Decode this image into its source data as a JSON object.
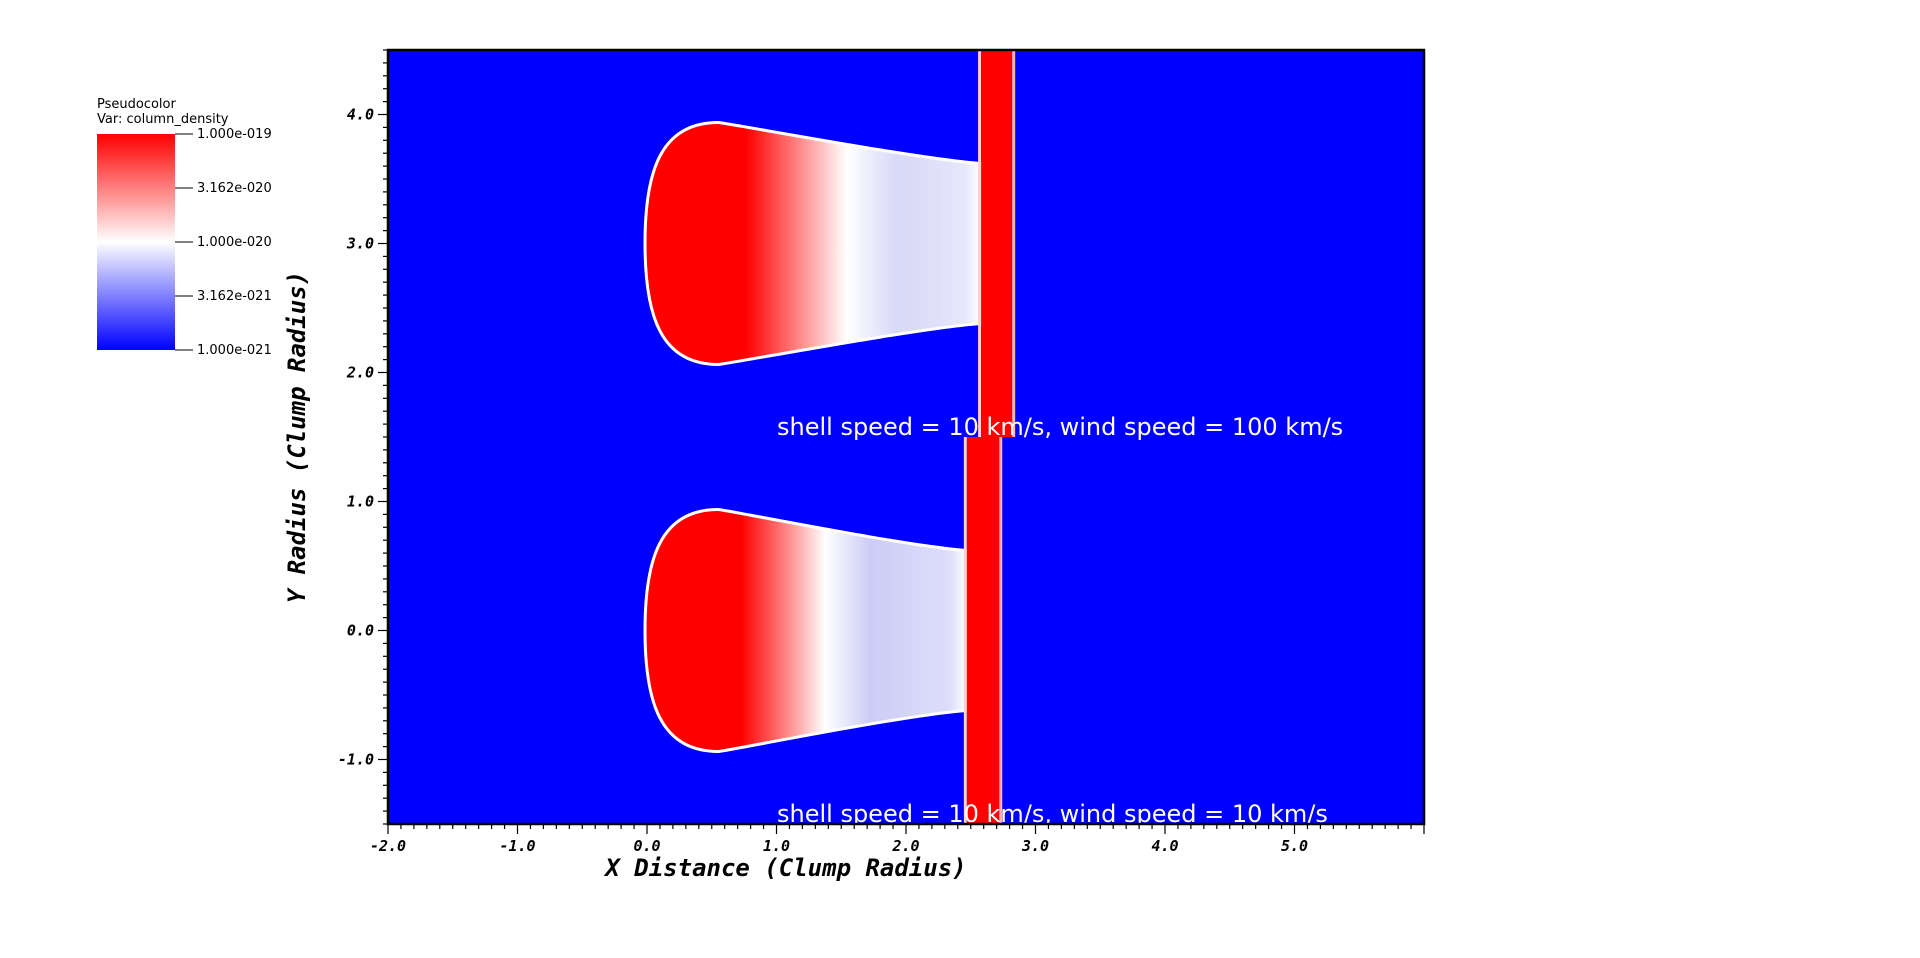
{
  "legend": {
    "title_line1": "Pseudocolor",
    "title_line2": "Var: column_density",
    "ticks": [
      "1.000e-019",
      "3.162e-020",
      "1.000e-020",
      "3.162e-021",
      "1.000e-021"
    ],
    "colors": {
      "high": "#ff0000",
      "mid": "#ffffff",
      "low": "#0000ff"
    }
  },
  "chart_data": {
    "type": "heatmap",
    "variable": "column_density",
    "scale": "log",
    "color_range": [
      1e-21,
      1e-19
    ],
    "xlabel": "X Distance (Clump Radius)",
    "ylabel": "Y Radius (Clump Radius)",
    "xlim": [
      -2.0,
      6.0
    ],
    "ylim": [
      -1.5,
      4.5
    ],
    "xticks": [
      -2.0,
      -1.0,
      0.0,
      1.0,
      2.0,
      3.0,
      4.0,
      5.0
    ],
    "xtick_labels": [
      "-2.0",
      "-1.0",
      "0.0",
      "1.0",
      "2.0",
      "3.0",
      "4.0",
      "5.0"
    ],
    "yticks": [
      -1.0,
      0.0,
      1.0,
      2.0,
      3.0,
      4.0
    ],
    "ytick_labels": [
      "-1.0",
      "0.0",
      "1.0",
      "2.0",
      "3.0",
      "4.0"
    ],
    "background_color": "#0000ff",
    "panels": [
      {
        "annotation": "shell speed = 10 km/s, wind speed = 100 km/s",
        "y_range": [
          1.5,
          4.5
        ],
        "clump_center": [
          0.0,
          3.0
        ],
        "shell_x": [
          2.58,
          2.82
        ]
      },
      {
        "annotation": "shell speed = 10 km/s, wind speed = 10 km/s",
        "y_range": [
          -1.5,
          1.5
        ],
        "clump_center": [
          0.0,
          0.0
        ],
        "shell_x": [
          2.47,
          2.72
        ]
      }
    ]
  }
}
